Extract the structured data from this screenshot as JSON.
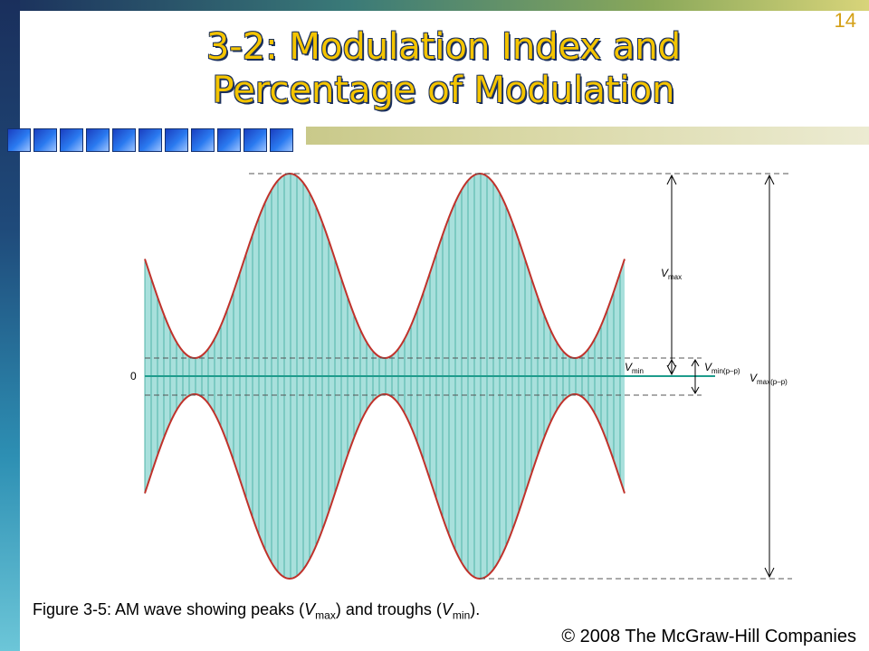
{
  "slide": {
    "number": "14",
    "title_line1": "3-2: Modulation Index and",
    "title_line2": "Percentage of Modulation",
    "decor_square_count": 11
  },
  "figure": {
    "zero_label": "0",
    "vmax": {
      "main": "V",
      "sub": "max"
    },
    "vmin": {
      "main": "V",
      "sub": "min"
    },
    "vmin_pp": {
      "main": "V",
      "sub": "min(p–p)"
    },
    "vmax_pp": {
      "main": "V",
      "sub": "max(p–p)"
    },
    "colors": {
      "envelope": "#c0322b",
      "fill": "#a8e0dc",
      "carrier": "#4fb3a8",
      "baseline": "#1e9c8c"
    }
  },
  "caption": {
    "prefix": "Figure 3-5: AM wave showing peaks (",
    "vmax_main": "V",
    "vmax_sub": "max",
    "middle": ") and troughs (",
    "vmin_main": "V",
    "vmin_sub": "min",
    "suffix": ")."
  },
  "footer": {
    "copyright": "© 2008 The McGraw-Hill Companies"
  }
}
